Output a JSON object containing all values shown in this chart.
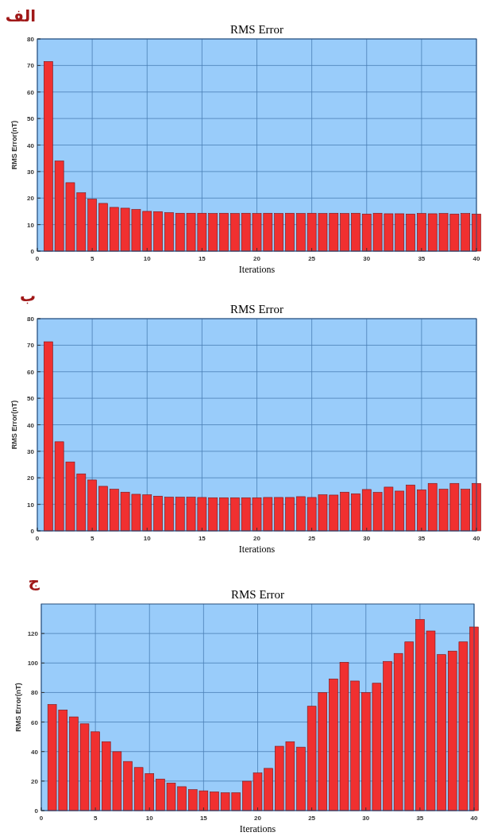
{
  "chart_data": [
    {
      "type": "bar",
      "title": "RMS Error",
      "xlabel": "Iterations",
      "ylabel": "RMS Error(nT)",
      "annotations": [
        "الف"
      ],
      "x": [
        1,
        2,
        3,
        4,
        5,
        6,
        7,
        8,
        9,
        10,
        11,
        12,
        13,
        14,
        15,
        16,
        17,
        18,
        19,
        20,
        21,
        22,
        23,
        24,
        25,
        26,
        27,
        28,
        29,
        30,
        31,
        32,
        33,
        34,
        35,
        36,
        37,
        38,
        39,
        40
      ],
      "values": [
        71.5,
        34,
        25.8,
        22,
        19.6,
        18,
        16.5,
        16.2,
        15.7,
        15,
        14.9,
        14.5,
        14.3,
        14.3,
        14.3,
        14.2,
        14.3,
        14.2,
        14.3,
        14.2,
        14.3,
        14.2,
        14.3,
        14.2,
        14.3,
        14.2,
        14.3,
        14.2,
        14.3,
        14,
        14.3,
        14.1,
        14.1,
        14,
        14.2,
        14.1,
        14.2,
        14,
        14.2,
        14
      ],
      "color": "#f03030",
      "xlim": [
        0,
        40
      ],
      "xticks": [
        0,
        5,
        10,
        15,
        20,
        25,
        30,
        35,
        40
      ],
      "ylim": [
        0,
        80
      ],
      "yticks": [
        0,
        10,
        20,
        30,
        40,
        50,
        60,
        70,
        80
      ],
      "grid": true
    },
    {
      "type": "bar",
      "title": "RMS Error",
      "xlabel": "Iterations",
      "ylabel": "RMS Error(nT)",
      "annotations": [
        "ب"
      ],
      "x": [
        1,
        2,
        3,
        4,
        5,
        6,
        7,
        8,
        9,
        10,
        11,
        12,
        13,
        14,
        15,
        16,
        17,
        18,
        19,
        20,
        21,
        22,
        23,
        24,
        25,
        26,
        27,
        28,
        29,
        30,
        31,
        32,
        33,
        34,
        35,
        36,
        37,
        38,
        39,
        40
      ],
      "values": [
        71.3,
        33.6,
        26,
        21.5,
        19.2,
        16.8,
        15.7,
        14.6,
        13.8,
        13.6,
        13.1,
        12.7,
        12.7,
        12.7,
        12.6,
        12.5,
        12.5,
        12.5,
        12.5,
        12.5,
        12.6,
        12.6,
        12.6,
        12.9,
        12.6,
        13.6,
        13.5,
        14.6,
        14,
        15.6,
        14.5,
        16.5,
        15,
        17.3,
        15.5,
        17.9,
        15.7,
        17.9,
        15.7,
        17.9
      ],
      "color": "#f03030",
      "xlim": [
        0,
        40
      ],
      "xticks": [
        0,
        5,
        10,
        15,
        20,
        25,
        30,
        35,
        40
      ],
      "ylim": [
        0,
        80
      ],
      "yticks": [
        0,
        10,
        20,
        30,
        40,
        50,
        60,
        70,
        80
      ],
      "grid": true
    },
    {
      "type": "bar",
      "title": "RMS Error",
      "xlabel": "Iterations",
      "ylabel": "RMS Error(nT)",
      "annotations": [
        "ج"
      ],
      "x": [
        1,
        2,
        3,
        4,
        5,
        6,
        7,
        8,
        9,
        10,
        11,
        12,
        13,
        14,
        15,
        16,
        17,
        18,
        19,
        20,
        21,
        22,
        23,
        24,
        25,
        26,
        27,
        28,
        29,
        30,
        31,
        32,
        33,
        34,
        35,
        36,
        37,
        38,
        39,
        40
      ],
      "values": [
        71.9,
        68.2,
        63.5,
        58.8,
        53.4,
        46.7,
        39.9,
        33.3,
        29.2,
        25.1,
        21.4,
        18.7,
        16.2,
        14.2,
        13.4,
        12.7,
        12.1,
        12.1,
        19.9,
        25.5,
        28.6,
        43.6,
        46.7,
        43,
        70.7,
        80,
        89.2,
        100.5,
        87.8,
        80,
        86.3,
        101.1,
        106.5,
        114.3,
        129.5,
        121.7,
        105.7,
        108.1,
        114.3,
        124.4
      ],
      "color": "#f03030",
      "xlim": [
        0,
        40
      ],
      "xticks": [
        0,
        5,
        10,
        15,
        20,
        25,
        30,
        35,
        40
      ],
      "ylim": [
        0,
        140
      ],
      "yticks": [
        0,
        20,
        40,
        60,
        80,
        100,
        120
      ],
      "grid": true
    }
  ]
}
